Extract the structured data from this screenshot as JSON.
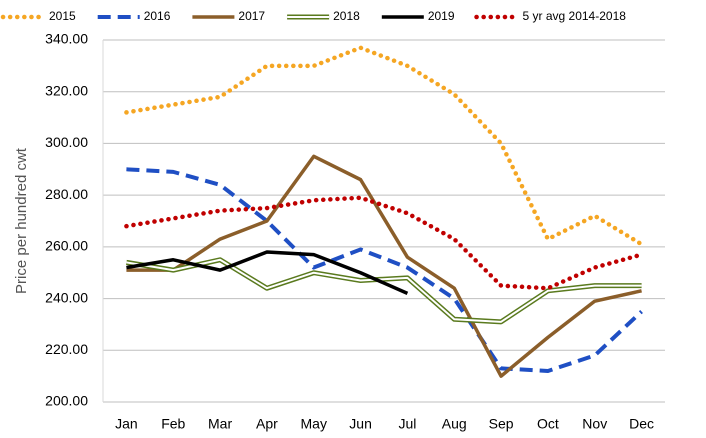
{
  "chart_data": {
    "type": "line",
    "ylabel": "Price per hundred cwt",
    "categories": [
      "Jan",
      "Feb",
      "Mar",
      "Apr",
      "May",
      "Jun",
      "Jul",
      "Aug",
      "Sep",
      "Oct",
      "Nov",
      "Dec"
    ],
    "series": [
      {
        "name": "2015",
        "color": "#f5a623",
        "dash": "dotted",
        "values": [
          312,
          315,
          318,
          330,
          330,
          337,
          330,
          319,
          300,
          263,
          272,
          261
        ]
      },
      {
        "name": "2016",
        "color": "#1f4fc4",
        "dash": "dashed",
        "values": [
          290,
          289,
          284,
          270,
          252,
          259,
          252,
          240,
          213,
          212,
          218,
          235
        ]
      },
      {
        "name": "2017",
        "color": "#8b5e2a",
        "dash": "solid",
        "values": [
          251,
          251,
          263,
          270,
          295,
          286,
          256,
          244,
          210,
          225,
          239,
          243
        ]
      },
      {
        "name": "2018",
        "color": "#5a7a1e",
        "dash": "double",
        "values": [
          254,
          251,
          255,
          244,
          250,
          247,
          248,
          232,
          231,
          243,
          245,
          245
        ]
      },
      {
        "name": "2019",
        "color": "#000000",
        "dash": "solid",
        "values": [
          252,
          255,
          251,
          258,
          257,
          250,
          242,
          null,
          null,
          null,
          null,
          null
        ]
      },
      {
        "name": "5 yr avg 2014-2018",
        "color": "#c00000",
        "dash": "dotted",
        "values": [
          268,
          271,
          274,
          275,
          278,
          279,
          273,
          263,
          245,
          244,
          252,
          257
        ]
      }
    ],
    "ylim": [
      200,
      340
    ],
    "yticks": [
      {
        "value": 200,
        "label": "200.00"
      },
      {
        "value": 220,
        "label": "220.00"
      },
      {
        "value": 240,
        "label": "240.00"
      },
      {
        "value": 260,
        "label": "260.00"
      },
      {
        "value": 280,
        "label": "280.00"
      },
      {
        "value": 300,
        "label": "300.00"
      },
      {
        "value": 320,
        "label": "320.00"
      },
      {
        "value": 340,
        "label": "340.00"
      }
    ],
    "grid": true,
    "legend": "top"
  }
}
